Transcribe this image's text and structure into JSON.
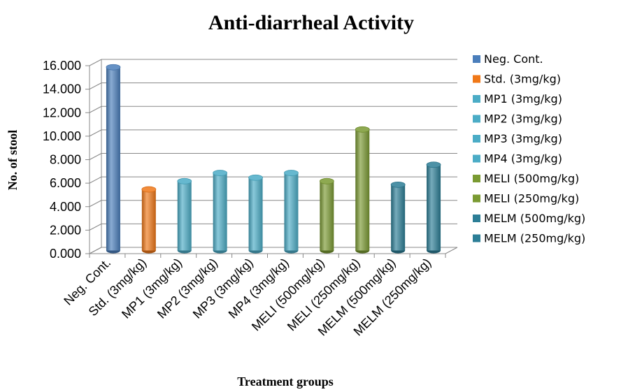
{
  "chart_data": {
    "type": "bar",
    "title": "Anti-diarrheal Activity",
    "xlabel": "Treatment groups",
    "ylabel": "No. of stool",
    "ylim": [
      0,
      16
    ],
    "yticks": [
      "0.000",
      "2.000",
      "4.000",
      "6.000",
      "8.000",
      "10.000",
      "12.000",
      "14.000",
      "16.000"
    ],
    "grid": true,
    "legend_position": "right",
    "categories": [
      "Neg. Cont.",
      "Std. (3mg/kg)",
      "MP1 (3mg/kg)",
      "MP2 (3mg/kg)",
      "MP3 (3mg/kg)",
      "MP4 (3mg/kg)",
      "MELI (500mg/kg)",
      "MELI (250mg/kg)",
      "MELM (500mg/kg)",
      "MELM (250mg/kg)"
    ],
    "values": [
      15.6,
      5.2,
      5.9,
      6.6,
      6.2,
      6.6,
      5.9,
      10.3,
      5.6,
      7.3
    ],
    "colors": [
      "#4a7ebb",
      "#f07818",
      "#4bacc6",
      "#4bacc6",
      "#4bacc6",
      "#4bacc6",
      "#7a9a32",
      "#7a9a32",
      "#2c7e96",
      "#2c7e96"
    ]
  }
}
